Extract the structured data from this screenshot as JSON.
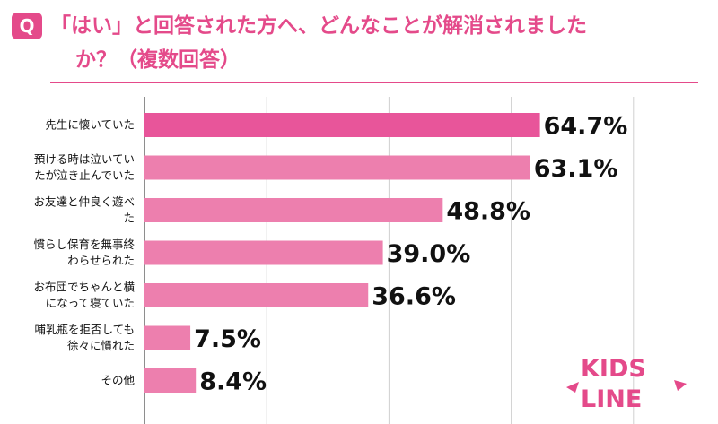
{
  "badge": "Q",
  "question": {
    "line1": "「はい」と回答された方へ、どんなことが解消されましたか？（複数回答）"
  },
  "question_lines": [
    "「はい」と回答された方へ、どんなことが解消されました",
    "か？（複数回答）"
  ],
  "logo": {
    "line1": "KIDS",
    "line2": "LINE"
  },
  "colors": {
    "accent": "#e44a8a",
    "bar_top": "#e8559a",
    "bar": "#ed7fae"
  },
  "chart_data": {
    "type": "bar",
    "orientation": "horizontal",
    "categories": [
      [
        "先生に懐いていた"
      ],
      [
        "預ける時は泣いてい",
        "たが泣き止んでいた"
      ],
      [
        "お友達と仲良く遊べ",
        "た"
      ],
      [
        "慣らし保育を無事終",
        "わらせられた"
      ],
      [
        "お布団でちゃんと横",
        "になって寝ていた"
      ],
      [
        "哺乳瓶を拒否しても",
        "徐々に慣れた"
      ],
      [
        "その他"
      ]
    ],
    "values": [
      64.7,
      63.1,
      48.8,
      39.0,
      36.6,
      7.5,
      8.4
    ],
    "value_labels": [
      "64.7%",
      "63.1%",
      "48.8%",
      "39.0%",
      "36.6%",
      "7.5%",
      "8.4%"
    ],
    "xlim": [
      0,
      100
    ],
    "grid": true
  }
}
